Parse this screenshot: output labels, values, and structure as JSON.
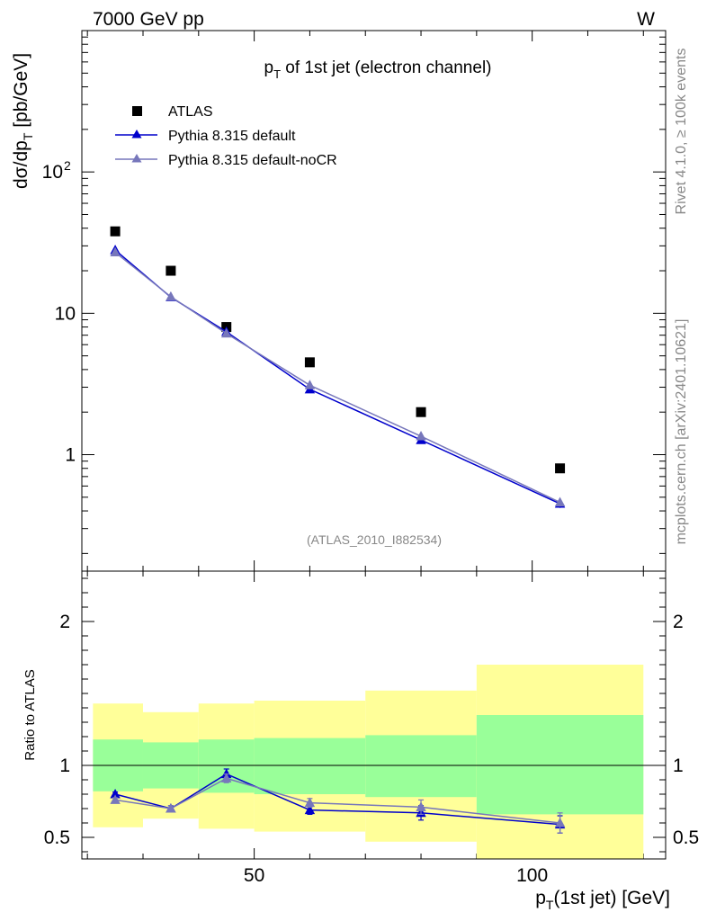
{
  "header": {
    "left": "7000 GeV pp",
    "right": "W"
  },
  "side_text": {
    "rivet": "Rivet 4.1.0, ≥ 100k events",
    "mcplots": "mcplots.cern.ch [arXiv:2401.10621]"
  },
  "colors": {
    "pythia": "#0000cc",
    "nocr": "#7777bb",
    "band_inner": "#99ff99",
    "band_outer": "#ffff99",
    "data": "#000000"
  },
  "chart_data": [
    {
      "type": "scatter",
      "title_parts": {
        "p": "p",
        "sub": "T",
        "rest": " of 1st jet (electron channel)"
      },
      "ylabel_parts": {
        "pre": "dσ/dp",
        "sub": "T",
        "post": " [pb/GeV]"
      },
      "yscale": "log",
      "ylim": [
        0.15,
        1000
      ],
      "xlim": [
        19,
        124
      ],
      "ytick_labels": [
        {
          "value": 1,
          "label": "1"
        },
        {
          "value": 10,
          "label": "10"
        },
        {
          "value": 100,
          "label": "10",
          "sup": "2"
        }
      ],
      "watermark": "(ATLAS_2010_I882534)",
      "legend": [
        "ATLAS",
        "Pythia 8.315 default",
        "Pythia 8.315 default-noCR"
      ],
      "series": [
        {
          "name": "ATLAS",
          "marker": "square",
          "x": [
            25,
            35,
            45,
            60,
            80,
            105
          ],
          "y": [
            38,
            20,
            8.0,
            4.5,
            2.0,
            0.8
          ]
        },
        {
          "name": "Pythia 8.315 default",
          "marker": "triangle",
          "x": [
            25,
            35,
            45,
            60,
            80,
            105
          ],
          "y": [
            28,
            13,
            7.4,
            2.9,
            1.27,
            0.45
          ],
          "err": [
            0.6,
            0.3,
            0.2,
            0.08,
            0.05,
            0.03
          ]
        },
        {
          "name": "Pythia 8.315 default-noCR",
          "marker": "triangle",
          "x": [
            25,
            35,
            45,
            60,
            80,
            105
          ],
          "y": [
            27,
            13.1,
            7.2,
            3.1,
            1.35,
            0.46
          ],
          "err": [
            0.6,
            0.3,
            0.2,
            0.08,
            0.06,
            0.03
          ]
        }
      ]
    },
    {
      "type": "scatter",
      "ylabel": "Ratio to ATLAS",
      "xlabel_parts": {
        "p": "p",
        "sub": "T",
        "rest": "(1st jet) [GeV]"
      },
      "ylim": [
        0.35,
        2.35
      ],
      "xlim": [
        19,
        124
      ],
      "reference": 1.0,
      "xtick_labels": [
        {
          "value": 50,
          "label": "50"
        },
        {
          "value": 100,
          "label": "100"
        }
      ],
      "ytick_labels": [
        {
          "value": 0.5,
          "label": "0.5"
        },
        {
          "value": 1,
          "label": "1"
        },
        {
          "value": 2,
          "label": "2"
        }
      ],
      "bands": [
        {
          "xlo": 21,
          "xhi": 30,
          "inner": [
            0.82,
            1.18
          ],
          "outer": [
            0.57,
            1.43
          ]
        },
        {
          "xlo": 30,
          "xhi": 40,
          "inner": [
            0.84,
            1.16
          ],
          "outer": [
            0.63,
            1.37
          ]
        },
        {
          "xlo": 40,
          "xhi": 50,
          "inner": [
            0.81,
            1.18
          ],
          "outer": [
            0.56,
            1.43
          ]
        },
        {
          "xlo": 50,
          "xhi": 70,
          "inner": [
            0.8,
            1.19
          ],
          "outer": [
            0.54,
            1.45
          ]
        },
        {
          "xlo": 70,
          "xhi": 90,
          "inner": [
            0.78,
            1.21
          ],
          "outer": [
            0.47,
            1.52
          ]
        },
        {
          "xlo": 90,
          "xhi": 120,
          "inner": [
            0.66,
            1.35
          ],
          "outer": [
            0.3,
            1.7
          ]
        }
      ],
      "series": [
        {
          "name": "Pythia 8.315 default",
          "x": [
            25,
            35,
            45,
            60,
            80,
            105
          ],
          "y": [
            0.8,
            0.7,
            0.94,
            0.69,
            0.67,
            0.59
          ],
          "err": [
            0.015,
            0.02,
            0.035,
            0.03,
            0.05,
            0.06
          ]
        },
        {
          "name": "Pythia 8.315 default-noCR",
          "x": [
            25,
            35,
            45,
            60,
            80,
            105
          ],
          "y": [
            0.76,
            0.7,
            0.91,
            0.74,
            0.71,
            0.6
          ],
          "err": [
            0.015,
            0.02,
            0.03,
            0.03,
            0.05,
            0.07
          ]
        }
      ]
    }
  ]
}
